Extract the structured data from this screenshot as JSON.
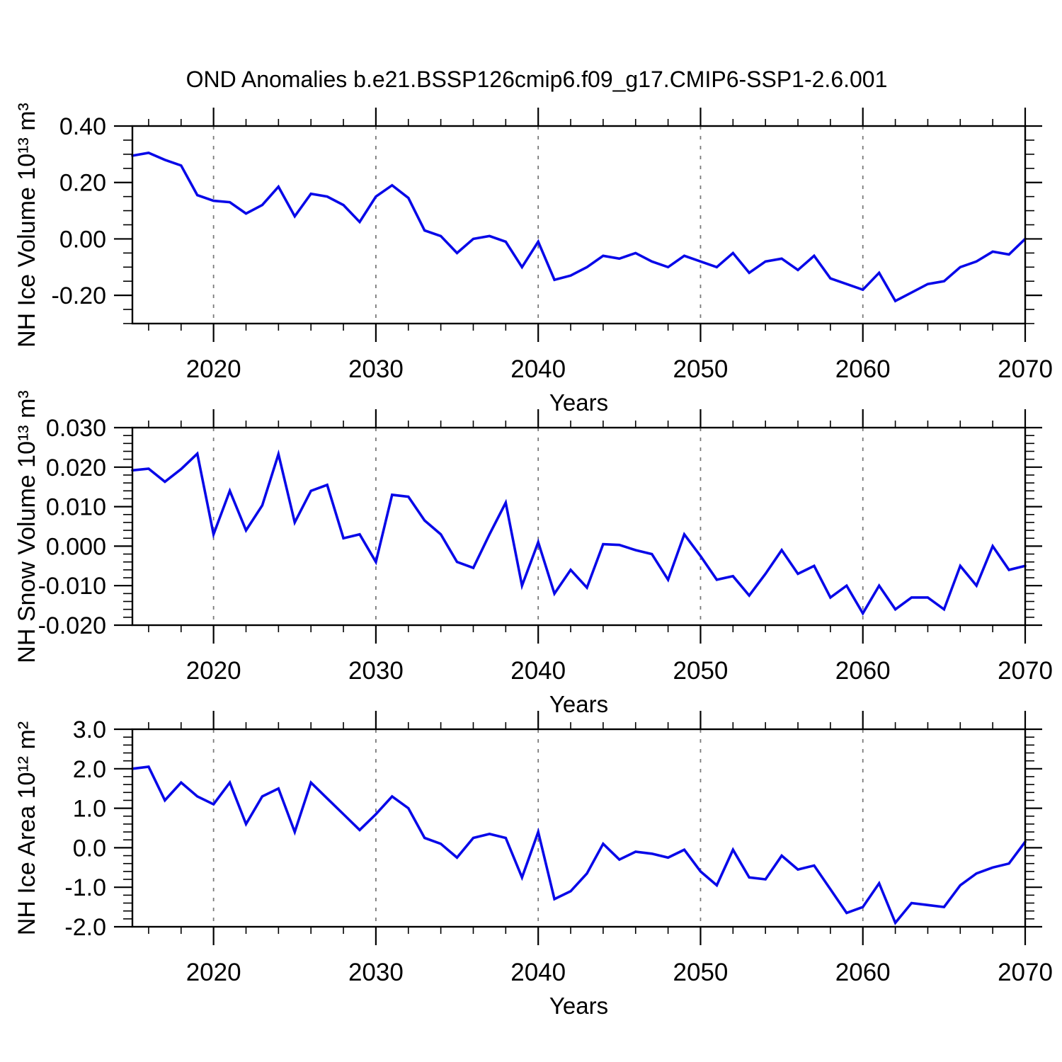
{
  "title": "OND Anomalies b.e21.BSSP126cmip6.f09_g17.CMIP6-SSP1-2.6.001",
  "colors": {
    "line": "#0808e8",
    "frame": "#000000",
    "grid": "#7a7a7a",
    "text": "#000000"
  },
  "x_axis": {
    "label": "Years",
    "start": 2015,
    "end": 2070,
    "minor_step": 2,
    "grid_years": [
      2020,
      2030,
      2040,
      2050,
      2060
    ],
    "major_ticks": [
      {
        "value": 2020,
        "label": "2020"
      },
      {
        "value": 2030,
        "label": "2030"
      },
      {
        "value": 2040,
        "label": "2040"
      },
      {
        "value": 2050,
        "label": "2050"
      },
      {
        "value": 2060,
        "label": "2060"
      },
      {
        "value": 2070,
        "label": "2070"
      }
    ],
    "years": [
      2015,
      2016,
      2017,
      2018,
      2019,
      2020,
      2021,
      2022,
      2023,
      2024,
      2025,
      2026,
      2027,
      2028,
      2029,
      2030,
      2031,
      2032,
      2033,
      2034,
      2035,
      2036,
      2037,
      2038,
      2039,
      2040,
      2041,
      2042,
      2043,
      2044,
      2045,
      2046,
      2047,
      2048,
      2049,
      2050,
      2051,
      2052,
      2053,
      2054,
      2055,
      2056,
      2057,
      2058,
      2059,
      2060,
      2061,
      2062,
      2063,
      2064,
      2065,
      2066,
      2067,
      2068,
      2069,
      2070
    ]
  },
  "chart_data": [
    {
      "type": "line",
      "name": "nh-ice-volume",
      "ylabel": "NH Ice Volume 10¹³ m³",
      "xlabel": "Years",
      "legend": "none",
      "grid": "vertical-dashed",
      "ylim": [
        -0.3,
        0.4
      ],
      "y_minor_step": 0.05,
      "yticks": [
        {
          "value": 0.4,
          "label": "0.40"
        },
        {
          "value": 0.2,
          "label": "0.20"
        },
        {
          "value": 0.0,
          "label": "0.00"
        },
        {
          "value": -0.2,
          "label": "-0.20"
        }
      ],
      "values": [
        0.295,
        0.305,
        0.28,
        0.26,
        0.155,
        0.135,
        0.13,
        0.09,
        0.12,
        0.185,
        0.08,
        0.16,
        0.15,
        0.12,
        0.06,
        0.15,
        0.19,
        0.145,
        0.03,
        0.01,
        -0.05,
        0.0,
        0.01,
        -0.01,
        -0.1,
        -0.01,
        -0.145,
        -0.13,
        -0.1,
        -0.06,
        -0.07,
        -0.05,
        -0.08,
        -0.1,
        -0.06,
        -0.08,
        -0.1,
        -0.05,
        -0.12,
        -0.08,
        -0.07,
        -0.11,
        -0.06,
        -0.14,
        -0.16,
        -0.18,
        -0.12,
        -0.22,
        -0.19,
        -0.16,
        -0.15,
        -0.1,
        -0.08,
        -0.045,
        -0.055,
        0.0
      ]
    },
    {
      "type": "line",
      "name": "nh-snow-volume",
      "ylabel": "NH Snow Volume 10¹³ m³",
      "xlabel": "Years",
      "legend": "none",
      "grid": "vertical-dashed",
      "ylim": [
        -0.02,
        0.03
      ],
      "y_minor_step": 0.002,
      "yticks": [
        {
          "value": 0.03,
          "label": "0.030"
        },
        {
          "value": 0.02,
          "label": "0.020"
        },
        {
          "value": 0.01,
          "label": "0.010"
        },
        {
          "value": 0.0,
          "label": "0.000"
        },
        {
          "value": -0.01,
          "label": "-0.010"
        },
        {
          "value": -0.02,
          "label": "-0.020"
        }
      ],
      "values": [
        0.0192,
        0.0196,
        0.0163,
        0.0195,
        0.0234,
        0.003,
        0.014,
        0.004,
        0.0103,
        0.0233,
        0.006,
        0.014,
        0.0155,
        0.002,
        0.003,
        -0.004,
        0.013,
        0.0125,
        0.0065,
        0.003,
        -0.004,
        -0.0055,
        0.003,
        0.011,
        -0.01,
        0.001,
        -0.012,
        -0.006,
        -0.0105,
        0.0005,
        0.0003,
        -0.001,
        -0.002,
        -0.0085,
        0.003,
        -0.0025,
        -0.0085,
        -0.0076,
        -0.0125,
        -0.007,
        -0.001,
        -0.007,
        -0.005,
        -0.013,
        -0.01,
        -0.017,
        -0.01,
        -0.016,
        -0.013,
        -0.013,
        -0.016,
        -0.005,
        -0.01,
        0.0,
        -0.006,
        -0.005
      ]
    },
    {
      "type": "line",
      "name": "nh-ice-area",
      "ylabel": "NH Ice Area 10¹² m²",
      "xlabel": "Years",
      "legend": "none",
      "grid": "vertical-dashed",
      "ylim": [
        -2.0,
        3.0
      ],
      "y_minor_step": 0.2,
      "yticks": [
        {
          "value": 3.0,
          "label": "3.0"
        },
        {
          "value": 2.0,
          "label": "2.0"
        },
        {
          "value": 1.0,
          "label": "1.0"
        },
        {
          "value": 0.0,
          "label": "0.0"
        },
        {
          "value": -1.0,
          "label": "-1.0"
        },
        {
          "value": -2.0,
          "label": "-2.0"
        }
      ],
      "values": [
        2.0,
        2.05,
        1.2,
        1.65,
        1.3,
        1.1,
        1.65,
        0.6,
        1.3,
        1.5,
        0.4,
        1.65,
        1.25,
        0.85,
        0.45,
        0.85,
        1.3,
        1.0,
        0.25,
        0.1,
        -0.25,
        0.25,
        0.35,
        0.25,
        -0.75,
        0.4,
        -1.3,
        -1.1,
        -0.65,
        0.1,
        -0.3,
        -0.1,
        -0.15,
        -0.25,
        -0.05,
        -0.6,
        -0.95,
        -0.05,
        -0.75,
        -0.8,
        -0.2,
        -0.55,
        -0.45,
        -1.05,
        -1.65,
        -1.5,
        -0.9,
        -1.9,
        -1.4,
        -1.45,
        -1.5,
        -0.95,
        -0.65,
        -0.5,
        -0.4,
        0.15
      ]
    }
  ]
}
